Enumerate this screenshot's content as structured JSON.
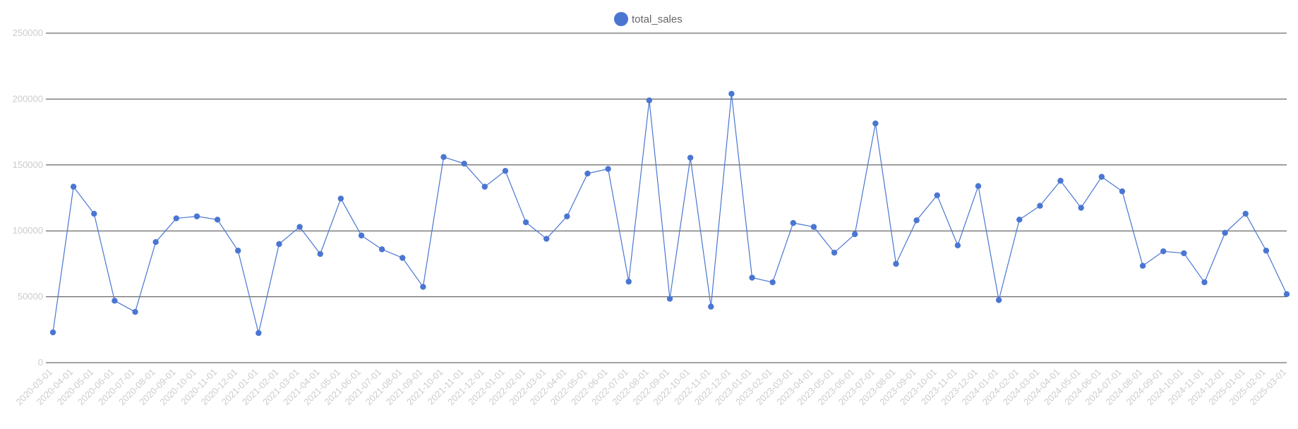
{
  "chart_data": {
    "type": "line",
    "legend": {
      "label": "total_sales",
      "placement": "top-center"
    },
    "colors": {
      "series": "#4a76d2",
      "grid": "#444444",
      "tick_text": "#cccccc",
      "legend_text": "#666666"
    },
    "grid": true,
    "ylim": [
      0,
      250000
    ],
    "yticks": [
      0,
      50000,
      100000,
      150000,
      200000,
      250000
    ],
    "ytick_labels": [
      "0",
      "50000",
      "100000",
      "150000",
      "200000",
      "250000"
    ],
    "x": [
      "2020-03-01",
      "2020-04-01",
      "2020-05-01",
      "2020-06-01",
      "2020-07-01",
      "2020-08-01",
      "2020-09-01",
      "2020-10-01",
      "2020-11-01",
      "2020-12-01",
      "2021-01-01",
      "2021-02-01",
      "2021-03-01",
      "2021-04-01",
      "2021-05-01",
      "2021-06-01",
      "2021-07-01",
      "2021-08-01",
      "2021-09-01",
      "2021-10-01",
      "2021-11-01",
      "2021-12-01",
      "2022-01-01",
      "2022-02-01",
      "2022-03-01",
      "2022-04-01",
      "2022-05-01",
      "2022-06-01",
      "2022-07-01",
      "2022-08-01",
      "2022-09-01",
      "2022-10-01",
      "2022-11-01",
      "2022-12-01",
      "2023-01-01",
      "2023-02-01",
      "2023-03-01",
      "2023-04-01",
      "2023-05-01",
      "2023-06-01",
      "2023-07-01",
      "2023-08-01",
      "2023-09-01",
      "2023-10-01",
      "2023-11-01",
      "2023-12-01",
      "2024-01-01",
      "2024-02-01",
      "2024-03-01",
      "2024-04-01",
      "2024-05-01",
      "2024-06-01",
      "2024-07-01",
      "2024-08-01",
      "2024-09-01",
      "2024-10-01",
      "2024-11-01",
      "2024-12-01",
      "2025-01-01",
      "2025-02-01",
      "2025-03-01"
    ],
    "series": [
      {
        "name": "total_sales",
        "values": [
          23000,
          133500,
          113000,
          47000,
          38500,
          91500,
          109500,
          111000,
          108500,
          85000,
          22500,
          90000,
          103000,
          82500,
          124500,
          96500,
          86000,
          79500,
          57500,
          156000,
          151000,
          133500,
          145500,
          106500,
          94000,
          111000,
          143500,
          147000,
          61500,
          199000,
          48500,
          155500,
          42500,
          204000,
          64500,
          61000,
          106000,
          103000,
          83500,
          97500,
          181500,
          75000,
          108000,
          127000,
          89000,
          134000,
          47500,
          108500,
          119000,
          138000,
          117500,
          141000,
          130000,
          73500,
          84500,
          83000,
          61000,
          98500,
          113000,
          85000,
          52000
        ]
      }
    ]
  }
}
